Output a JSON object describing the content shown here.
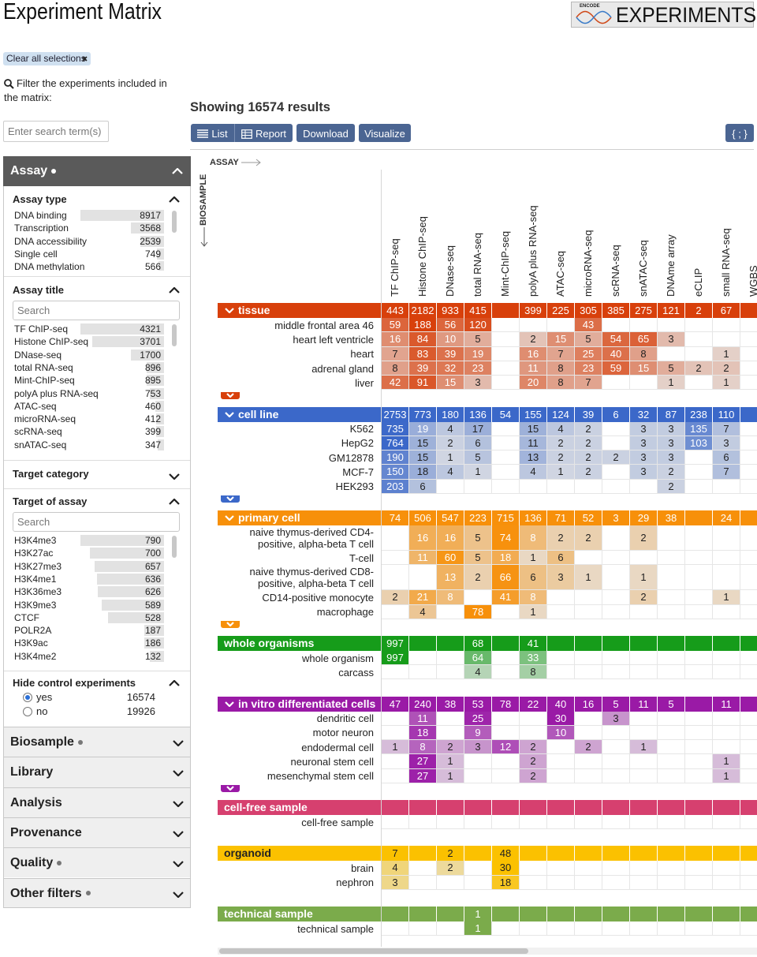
{
  "header": {
    "title": "Experiment Matrix",
    "logo_small": "ENCODE",
    "logo_text": "EXPERIMENTS"
  },
  "clear_button": "Clear all selections",
  "search": {
    "label": "Filter the experiments included in the matrix:",
    "placeholder": "Enter search term(s)"
  },
  "results": "Showing 16574 results",
  "toolbar": [
    "List",
    "Report",
    "Download",
    "Visualize",
    "{ ; }"
  ],
  "sidebar": {
    "section": "Assay",
    "facets": [
      {
        "title": "Assay type",
        "items": [
          {
            "label": "DNA binding",
            "count": 8917
          },
          {
            "label": "Transcription",
            "count": 3568
          },
          {
            "label": "DNA accessibility",
            "count": 2539
          },
          {
            "label": "Single cell",
            "count": 749
          },
          {
            "label": "DNA methylation",
            "count": 566
          }
        ]
      },
      {
        "title": "Assay title",
        "search": "Search",
        "items": [
          {
            "label": "TF ChIP-seq",
            "count": 4321
          },
          {
            "label": "Histone ChIP-seq",
            "count": 3701
          },
          {
            "label": "DNase-seq",
            "count": 1700
          },
          {
            "label": "total RNA-seq",
            "count": 896
          },
          {
            "label": "Mint-ChIP-seq",
            "count": 895
          },
          {
            "label": "polyA plus RNA-seq",
            "count": 753
          },
          {
            "label": "ATAC-seq",
            "count": 460
          },
          {
            "label": "microRNA-seq",
            "count": 412
          },
          {
            "label": "scRNA-seq",
            "count": 399
          },
          {
            "label": "snATAC-seq",
            "count": 347
          }
        ]
      },
      {
        "title": "Target category",
        "collapsed": true
      },
      {
        "title": "Target of assay",
        "search": "Search",
        "items": [
          {
            "label": "H3K4me3",
            "count": 790
          },
          {
            "label": "H3K27ac",
            "count": 700
          },
          {
            "label": "H3K27me3",
            "count": 657
          },
          {
            "label": "H3K4me1",
            "count": 636
          },
          {
            "label": "H3K36me3",
            "count": 626
          },
          {
            "label": "H3K9me3",
            "count": 589
          },
          {
            "label": "CTCF",
            "count": 528
          },
          {
            "label": "POLR2A",
            "count": 187
          },
          {
            "label": "H3K9ac",
            "count": 186
          },
          {
            "label": "H3K4me2",
            "count": 132
          }
        ]
      },
      {
        "title": "Hide control experiments",
        "radio": [
          {
            "label": "yes",
            "count": 16574,
            "checked": true
          },
          {
            "label": "no",
            "count": 19926,
            "checked": false
          }
        ]
      }
    ],
    "collapsed": [
      {
        "title": "Biosample",
        "selected": true
      },
      {
        "title": "Library",
        "selected": false
      },
      {
        "title": "Analysis",
        "selected": false
      },
      {
        "title": "Provenance",
        "selected": false
      },
      {
        "title": "Quality",
        "selected": true
      },
      {
        "title": "Other filters",
        "selected": true
      }
    ]
  },
  "matrix": {
    "x_label": "ASSAY",
    "y_label": "BIOSAMPLE",
    "columns": [
      "TF ChIP-seq",
      "Histone ChIP-seq",
      "DNase-seq",
      "total RNA-seq",
      "Mint-ChIP-seq",
      "polyA plus RNA-seq",
      "ATAC-seq",
      "microRNA-seq",
      "scRNA-seq",
      "snATAC-seq",
      "DNAme array",
      "eCLIP",
      "small RNA-seq",
      "WGBS"
    ],
    "groups": [
      {
        "name": "tissue",
        "color": "#d8400b",
        "totals": [
          443,
          2182,
          933,
          415,
          null,
          399,
          225,
          305,
          385,
          275,
          121,
          2,
          67,
          null
        ],
        "rows": [
          {
            "label": "middle frontal area 46",
            "values": [
              59,
              188,
              56,
              120,
              null,
              null,
              null,
              43,
              null,
              null,
              null,
              null,
              null,
              null
            ]
          },
          {
            "label": "heart left ventricle",
            "values": [
              16,
              84,
              10,
              5,
              null,
              2,
              15,
              5,
              54,
              65,
              3,
              null,
              null,
              null
            ]
          },
          {
            "label": "heart",
            "values": [
              7,
              83,
              39,
              19,
              null,
              16,
              7,
              25,
              40,
              8,
              null,
              null,
              1,
              null
            ]
          },
          {
            "label": "adrenal gland",
            "values": [
              8,
              39,
              32,
              23,
              null,
              11,
              8,
              23,
              59,
              15,
              5,
              2,
              2,
              null
            ]
          },
          {
            "label": "liver",
            "values": [
              42,
              91,
              15,
              3,
              null,
              20,
              8,
              7,
              null,
              null,
              1,
              null,
              1,
              null
            ]
          }
        ]
      },
      {
        "name": "cell line",
        "color": "#3b68c9",
        "totals": [
          2753,
          773,
          180,
          136,
          54,
          155,
          124,
          39,
          6,
          32,
          87,
          238,
          110,
          null
        ],
        "rows": [
          {
            "label": "K562",
            "values": [
              735,
              19,
              4,
              17,
              null,
              15,
              4,
              2,
              null,
              3,
              3,
              135,
              7,
              null
            ]
          },
          {
            "label": "HepG2",
            "values": [
              764,
              15,
              2,
              6,
              null,
              11,
              2,
              2,
              null,
              3,
              3,
              103,
              3,
              null
            ]
          },
          {
            "label": "GM12878",
            "values": [
              190,
              15,
              1,
              5,
              null,
              13,
              2,
              2,
              2,
              3,
              3,
              null,
              6,
              null
            ]
          },
          {
            "label": "MCF-7",
            "values": [
              150,
              18,
              4,
              1,
              null,
              4,
              1,
              2,
              null,
              3,
              2,
              null,
              7,
              null
            ]
          },
          {
            "label": "HEK293",
            "values": [
              203,
              6,
              null,
              null,
              null,
              null,
              null,
              null,
              null,
              null,
              2,
              null,
              null,
              null
            ]
          }
        ]
      },
      {
        "name": "primary cell",
        "color": "#f7900a",
        "totals": [
          74,
          506,
          547,
          223,
          715,
          136,
          71,
          52,
          3,
          29,
          38,
          null,
          24,
          null
        ],
        "rows": [
          {
            "label": "naive thymus-derived CD4-positive, alpha-beta T cell",
            "values": [
              null,
              16,
              16,
              5,
              74,
              8,
              2,
              2,
              null,
              2,
              null,
              null,
              null,
              null
            ]
          },
          {
            "label": "T-cell",
            "values": [
              null,
              11,
              60,
              5,
              18,
              1,
              6,
              null,
              null,
              null,
              null,
              null,
              null,
              null
            ]
          },
          {
            "label": "naive thymus-derived CD8-positive, alpha-beta T cell",
            "values": [
              null,
              null,
              13,
              2,
              66,
              6,
              3,
              1,
              null,
              1,
              null,
              null,
              null,
              null
            ]
          },
          {
            "label": "CD14-positive monocyte",
            "values": [
              2,
              21,
              8,
              null,
              41,
              8,
              null,
              null,
              null,
              2,
              null,
              null,
              1,
              null
            ]
          },
          {
            "label": "macrophage",
            "values": [
              null,
              4,
              null,
              78,
              null,
              1,
              null,
              null,
              null,
              null,
              null,
              null,
              null,
              null
            ]
          }
        ]
      },
      {
        "name": "whole organisms",
        "color": "#169c1a",
        "totals": [
          997,
          null,
          null,
          68,
          null,
          41,
          null,
          null,
          null,
          null,
          null,
          null,
          null,
          null
        ],
        "rows": [
          {
            "label": "whole organism",
            "values": [
              997,
              null,
              null,
              64,
              null,
              33,
              null,
              null,
              null,
              null,
              null,
              null,
              null,
              null
            ]
          },
          {
            "label": "carcass",
            "values": [
              null,
              null,
              null,
              4,
              null,
              8,
              null,
              null,
              null,
              null,
              null,
              null,
              null,
              null
            ]
          }
        ]
      },
      {
        "name": "in vitro differentiated cells",
        "color": "#9a1aa6",
        "totals": [
          47,
          240,
          38,
          53,
          78,
          22,
          40,
          16,
          5,
          11,
          5,
          null,
          11,
          null
        ],
        "rows": [
          {
            "label": "dendritic cell",
            "values": [
              null,
              11,
              null,
              25,
              null,
              null,
              30,
              null,
              3,
              null,
              null,
              null,
              null,
              null
            ]
          },
          {
            "label": "motor neuron",
            "values": [
              null,
              18,
              null,
              9,
              null,
              null,
              10,
              null,
              null,
              null,
              null,
              null,
              null,
              null
            ]
          },
          {
            "label": "endodermal cell",
            "values": [
              1,
              8,
              2,
              3,
              12,
              2,
              null,
              2,
              null,
              1,
              null,
              null,
              null,
              null
            ]
          },
          {
            "label": "neuronal stem cell",
            "values": [
              null,
              27,
              1,
              null,
              null,
              2,
              null,
              null,
              null,
              null,
              null,
              null,
              1,
              null
            ]
          },
          {
            "label": "mesenchymal stem cell",
            "values": [
              null,
              27,
              1,
              null,
              null,
              2,
              null,
              null,
              null,
              null,
              null,
              null,
              1,
              null
            ]
          }
        ]
      },
      {
        "name": "cell-free sample",
        "color": "#d6406f",
        "totals": [
          null,
          null,
          null,
          null,
          null,
          null,
          null,
          null,
          null,
          null,
          null,
          null,
          null,
          null
        ],
        "rows": [
          {
            "label": "cell-free sample",
            "values": [
              null,
              null,
              null,
              null,
              null,
              null,
              null,
              null,
              null,
              null,
              null,
              null,
              null,
              null
            ]
          }
        ]
      },
      {
        "name": "organoid",
        "color": "#fbc100",
        "totals": [
          7,
          null,
          2,
          null,
          48,
          null,
          null,
          null,
          null,
          null,
          null,
          null,
          null,
          null
        ],
        "rows": [
          {
            "label": "brain",
            "values": [
              4,
              null,
              2,
              null,
              30,
              null,
              null,
              null,
              null,
              null,
              null,
              null,
              null,
              null
            ]
          },
          {
            "label": "nephron",
            "values": [
              3,
              null,
              null,
              null,
              18,
              null,
              null,
              null,
              null,
              null,
              null,
              null,
              null,
              null
            ]
          }
        ]
      },
      {
        "name": "technical sample",
        "color": "#7bab4b",
        "totals": [
          null,
          null,
          null,
          1,
          null,
          null,
          null,
          null,
          null,
          null,
          null,
          null,
          null,
          null
        ],
        "rows": [
          {
            "label": "technical sample",
            "values": [
              null,
              null,
              null,
              1,
              null,
              null,
              null,
              null,
              null,
              null,
              null,
              null,
              null,
              null
            ]
          }
        ]
      }
    ]
  }
}
